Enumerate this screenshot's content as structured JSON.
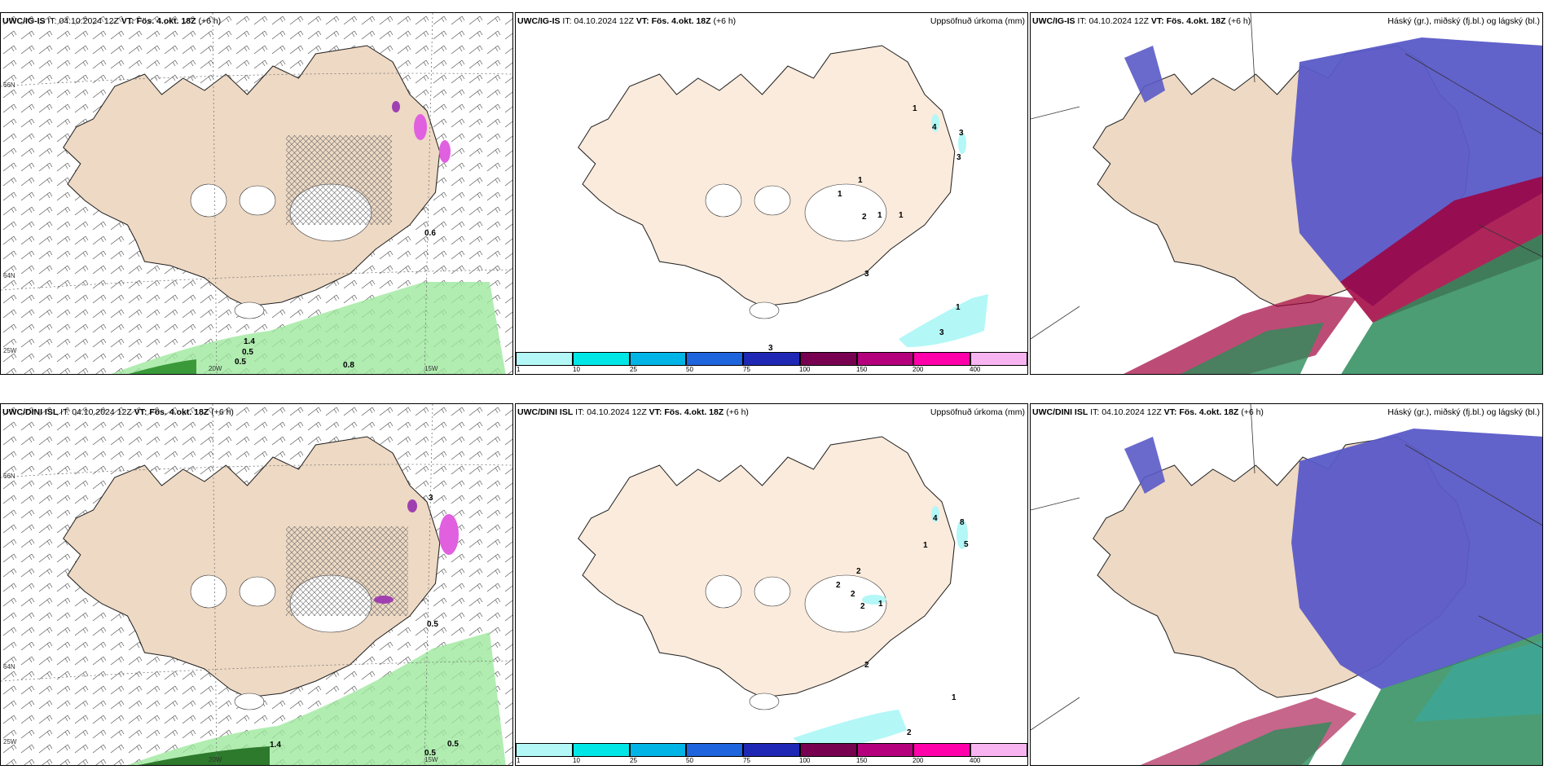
{
  "panels": {
    "p1": {
      "model": "UWC/IG-IS",
      "it_label": "IT:",
      "it": "04.10.2024 12Z",
      "vt_label": "VT:",
      "vt": "Fös. 4.okt. 18Z",
      "lead": "(+6 h)"
    },
    "p2": {
      "model": "UWC/IG-IS",
      "it_label": "IT:",
      "it": "04.10.2024 12Z",
      "vt_label": "VT:",
      "vt": "Fös. 4.okt. 18Z",
      "lead": "(+6 h)",
      "title": "Uppsöfnuð úrkoma (mm)"
    },
    "p3": {
      "model": "UWC/IG-IS",
      "it_label": "IT:",
      "it": "04.10.2024 12Z",
      "vt_label": "VT:",
      "vt": "Fös. 4.okt. 18Z",
      "lead": "(+6 h)",
      "title": "Háský (gr.), miðský (fj.bl.) og lágský (bl.)"
    },
    "p4": {
      "model": "UWC/DINI ISL",
      "it_label": "IT:",
      "it": "04.10.2024 12Z",
      "vt_label": "VT:",
      "vt": "Fös. 4.okt. 18Z",
      "lead": "(+6 h)"
    },
    "p5": {
      "model": "UWC/DINI ISL",
      "it_label": "IT:",
      "it": "04.10.2024 12Z",
      "vt_label": "VT:",
      "vt": "Fös. 4.okt. 18Z",
      "lead": "(+6 h)",
      "title": "Uppsöfnuð úrkoma (mm)"
    },
    "p6": {
      "model": "UWC/DINI ISL",
      "it_label": "IT:",
      "it": "04.10.2024 12Z",
      "vt_label": "VT:",
      "vt": "Fös. 4.okt. 18Z",
      "lead": "(+6 h)",
      "title": "Háský (gr.), miðský (fj.bl.) og lágský (bl.)"
    }
  },
  "grid_labels": {
    "lat66": "66N",
    "lat64": "64N",
    "lon25": "25W",
    "lon20": "20W",
    "lon15": "15W"
  },
  "wind_values": {
    "p1": [
      "0.6",
      "1.4",
      "0.5",
      "0.5",
      "0.8"
    ],
    "p4": [
      "3",
      "0.5",
      "1.4",
      "0.5",
      "0.5"
    ]
  },
  "precip_values": {
    "p2": [
      "1",
      "4",
      "3",
      "3",
      "1",
      "1",
      "2",
      "1",
      "1",
      "3",
      "1",
      "3",
      "3"
    ],
    "p5": [
      "4",
      "8",
      "5",
      "1",
      "2",
      "2",
      "2",
      "2",
      "1",
      "2",
      "1",
      "2"
    ]
  },
  "colorbar": {
    "ticks": [
      "1",
      "10",
      "25",
      "50",
      "75",
      "100",
      "150",
      "200",
      "400"
    ],
    "colors": [
      "#b3f7f7",
      "#00e6e6",
      "#00b4e6",
      "#1e64dc",
      "#1e28b4",
      "#780050",
      "#b4007d",
      "#ff00aa",
      "#f7b4f0"
    ]
  },
  "colors": {
    "land": "#eed9c4",
    "land_plain": "#fbebdc",
    "cloud_high": "#5a5ac8",
    "cloud_mid": "#2d8c5a",
    "cloud_low": "#a0003c",
    "wind_precip": "#9ee89e"
  }
}
